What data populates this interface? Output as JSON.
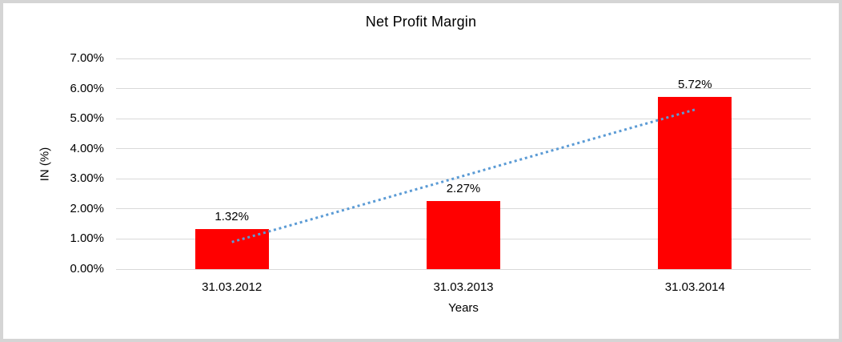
{
  "window": {
    "background_color": "#FFFFFF",
    "border_color": "#D5D5D5"
  },
  "chart_data": {
    "type": "bar",
    "title": "Net Profit Margin",
    "xlabel": "Years",
    "ylabel": "IN (%)",
    "categories": [
      "31.03.2012",
      "31.03.2013",
      "31.03.2014"
    ],
    "values": [
      1.32,
      2.27,
      5.72
    ],
    "data_labels": [
      "1.32%",
      "2.27%",
      "5.72%"
    ],
    "y_tick_labels": [
      "0.00%",
      "1.00%",
      "2.00%",
      "3.00%",
      "4.00%",
      "5.00%",
      "6.00%",
      "7.00%"
    ],
    "ylim": [
      0,
      7
    ],
    "grid": true,
    "legend": false,
    "bar_color": "#FF0000",
    "gridline_color": "#D9D9D9",
    "text_color": "#000000",
    "trendline": {
      "type": "linear",
      "style": "dotted",
      "color": "#5B9BD5",
      "start_value": 0.9,
      "end_value": 5.3,
      "start_category_index": 0,
      "end_category_index": 2
    }
  }
}
